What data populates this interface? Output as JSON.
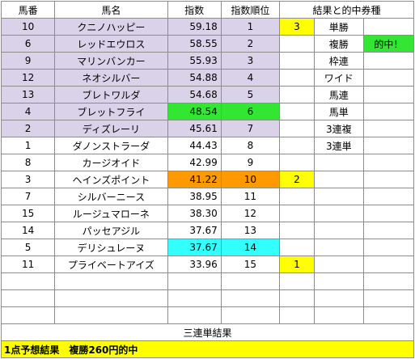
{
  "headers": {
    "num": "馬番",
    "name": "馬名",
    "index": "指数",
    "rank": "指数順位",
    "result_title": "結果と的中券種"
  },
  "rows": [
    {
      "num": "10",
      "name": "クニノハッピー",
      "index": "59.18",
      "rank": "1",
      "result": "3",
      "bet": "単勝",
      "hit": ""
    },
    {
      "num": "6",
      "name": "レッドエウロス",
      "index": "58.55",
      "rank": "2",
      "result": "",
      "bet": "複勝",
      "hit": "的中！"
    },
    {
      "num": "9",
      "name": "マリンバンカー",
      "index": "55.93",
      "rank": "3",
      "result": "",
      "bet": "枠連",
      "hit": ""
    },
    {
      "num": "12",
      "name": "ネオシルバー",
      "index": "54.88",
      "rank": "4",
      "result": "",
      "bet": "ワイド",
      "hit": ""
    },
    {
      "num": "13",
      "name": "ブレトワルダ",
      "index": "54.68",
      "rank": "5",
      "result": "",
      "bet": "馬連",
      "hit": ""
    },
    {
      "num": "4",
      "name": "ブレットフライ",
      "index": "48.54",
      "rank": "6",
      "result": "",
      "bet": "馬単",
      "hit": ""
    },
    {
      "num": "2",
      "name": "ディズレーリ",
      "index": "45.61",
      "rank": "7",
      "result": "",
      "bet": "3連複",
      "hit": ""
    },
    {
      "num": "1",
      "name": "ダノンストラーダ",
      "index": "44.43",
      "rank": "8",
      "result": "",
      "bet": "3連単",
      "hit": ""
    },
    {
      "num": "8",
      "name": "カージオイド",
      "index": "42.99",
      "rank": "9",
      "result": "",
      "bet": "",
      "hit": ""
    },
    {
      "num": "3",
      "name": "ヘインズポイント",
      "index": "41.22",
      "rank": "10",
      "result": "2",
      "bet": "",
      "hit": ""
    },
    {
      "num": "7",
      "name": "シルバーニース",
      "index": "38.95",
      "rank": "11",
      "result": "",
      "bet": "",
      "hit": ""
    },
    {
      "num": "15",
      "name": "ルージュマローネ",
      "index": "38.30",
      "rank": "12",
      "result": "",
      "bet": "",
      "hit": ""
    },
    {
      "num": "14",
      "name": "パッセアジル",
      "index": "37.67",
      "rank": "13",
      "result": "",
      "bet": "",
      "hit": ""
    },
    {
      "num": "5",
      "name": "デリシュレーヌ",
      "index": "37.67",
      "rank": "14",
      "result": "",
      "bet": "",
      "hit": ""
    },
    {
      "num": "11",
      "name": "プライベートアイズ",
      "index": "33.96",
      "rank": "15",
      "result": "1",
      "bet": "",
      "hit": ""
    }
  ],
  "summary_title": "三連単結果",
  "footer": "1点予想結果　複勝260円的中",
  "colors": {
    "lavender": "#d9d2e9",
    "green": "#33e633",
    "orange": "#ff9900",
    "cyan": "#33ffff",
    "yellow": "#ffff00"
  }
}
